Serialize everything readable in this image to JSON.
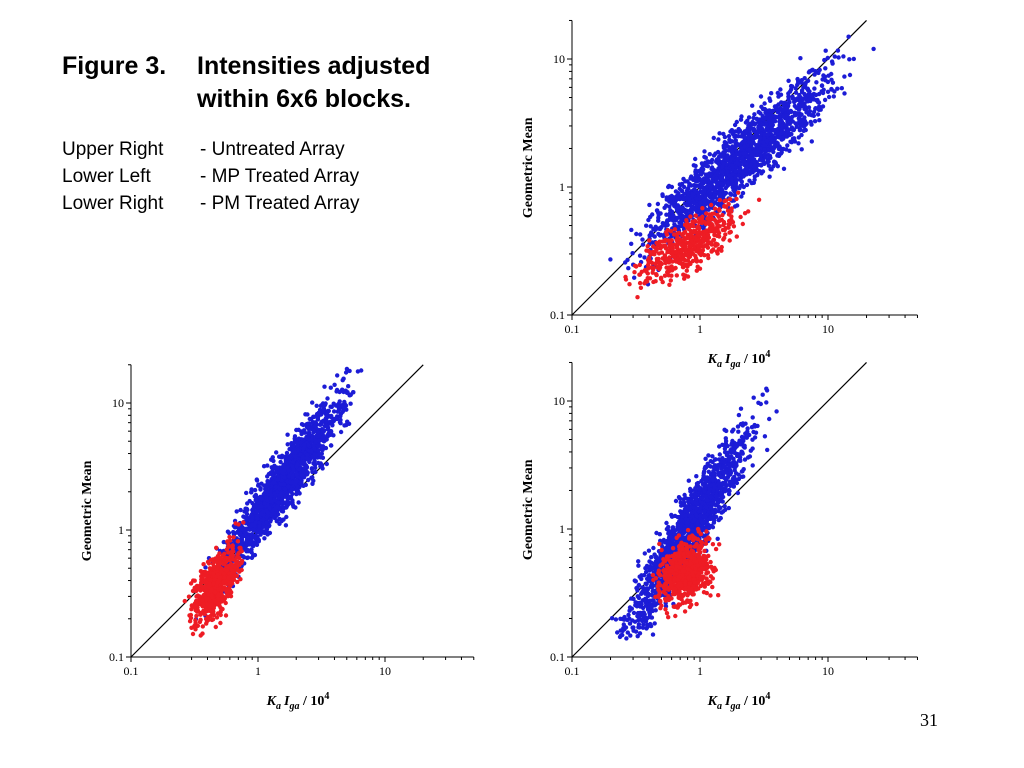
{
  "caption": {
    "figure_label": "Figure 3.",
    "title_line1": "Intensities adjusted",
    "title_line2": "within 6x6 blocks.",
    "panels": [
      {
        "position": "Upper Right",
        "description": "- Untreated Array"
      },
      {
        "position": "Lower Left",
        "description": "- MP Treated Array"
      },
      {
        "position": "Lower Right",
        "description": "- PM Treated Array"
      }
    ]
  },
  "slide_number": "31",
  "colors": {
    "series_blue": "#1c1cd6",
    "series_red": "#ee1c24",
    "axis": "#000000",
    "background": "#ffffff"
  },
  "chart_data": [
    {
      "panel": "Upper Right",
      "type": "scatter",
      "x_scale": "log",
      "y_scale": "log",
      "xlim": [
        0.1,
        50
      ],
      "ylim": [
        0.1,
        20
      ],
      "x_ticks": [
        "0.1",
        "1",
        "10"
      ],
      "y_ticks": [
        "0.1",
        "1",
        "10"
      ],
      "xlabel": {
        "k": "K",
        "k_sub": "a",
        "i": "I",
        "i_sub": "ga",
        "rest": " / 10",
        "exp": "4"
      },
      "ylabel": "Geometric Mean",
      "reference_line": "y = x",
      "series": [
        {
          "color": "#1c1cd6",
          "x_range": [
            0.15,
            28
          ],
          "slope": 0.85,
          "intercept": -0.06,
          "spread": 0.13,
          "count": 1600
        },
        {
          "color": "#ee1c24",
          "x_range": [
            0.2,
            3.3
          ],
          "slope": 0.55,
          "intercept": -0.4,
          "spread": 0.1,
          "count": 500
        }
      ]
    },
    {
      "panel": "Lower Left",
      "type": "scatter",
      "x_scale": "log",
      "y_scale": "log",
      "xlim": [
        0.1,
        50
      ],
      "ylim": [
        0.1,
        20
      ],
      "x_ticks": [
        "0.1",
        "1",
        "10"
      ],
      "y_ticks": [
        "0.1",
        "1",
        "10"
      ],
      "xlabel": {
        "k": "K",
        "k_sub": "a",
        "i": "I",
        "i_sub": "ga",
        "rest": " / 10",
        "exp": "4"
      },
      "ylabel": "Geometric Mean",
      "reference_line": "y = x",
      "series": [
        {
          "color": "#1c1cd6",
          "x_range": [
            0.25,
            10
          ],
          "slope": 1.35,
          "intercept": 0.1,
          "spread": 0.12,
          "count": 1500
        },
        {
          "color": "#ee1c24",
          "x_range": [
            0.23,
            0.95
          ],
          "slope": 1.0,
          "intercept": -0.1,
          "spread": 0.11,
          "count": 600
        }
      ]
    },
    {
      "panel": "Lower Right",
      "type": "scatter",
      "x_scale": "log",
      "y_scale": "log",
      "xlim": [
        0.1,
        50
      ],
      "ylim": [
        0.1,
        20
      ],
      "x_ticks": [
        "0.1",
        "1",
        "10"
      ],
      "y_ticks": [
        "0.1",
        "1",
        "10"
      ],
      "xlabel": {
        "k": "K",
        "k_sub": "a",
        "i": "I",
        "i_sub": "ga",
        "rest": " / 10",
        "exp": "4"
      },
      "ylabel": "Geometric Mean",
      "reference_line": "y = x",
      "series": [
        {
          "color": "#1c1cd6",
          "x_range": [
            0.14,
            4.8
          ],
          "slope": 1.55,
          "intercept": 0.12,
          "spread": 0.14,
          "count": 1500
        },
        {
          "color": "#ee1c24",
          "x_range": [
            0.35,
            1.7
          ],
          "slope": 0.4,
          "intercept": -0.3,
          "spread": 0.12,
          "count": 600
        }
      ]
    }
  ]
}
